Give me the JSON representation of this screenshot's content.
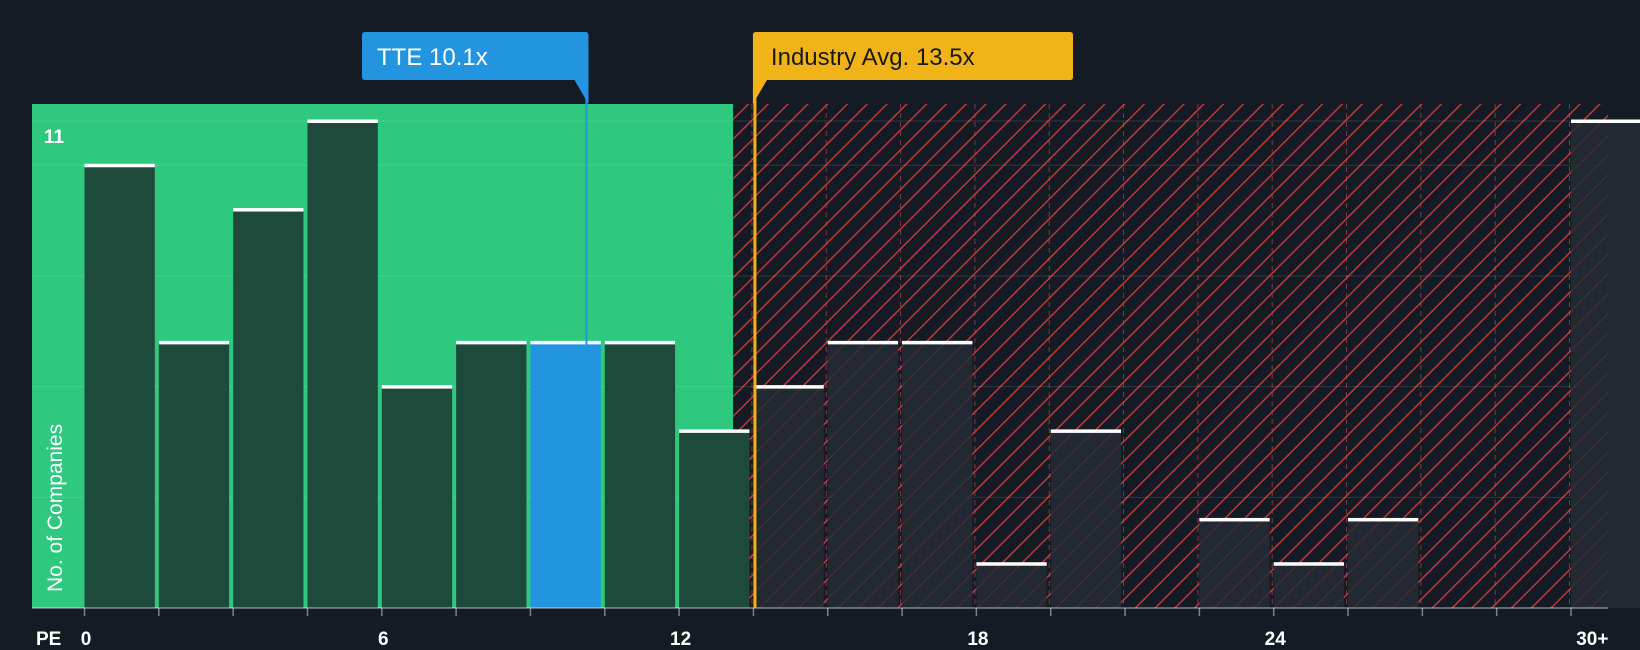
{
  "chart_data": {
    "type": "bar",
    "title": "",
    "xlabel": "PE",
    "ylabel": "No. of Companies",
    "bin_width": 1.5,
    "x_range": [
      -1.1,
      30.8
    ],
    "ylim": [
      0,
      11.4
    ],
    "y_tick_label": "11",
    "y_tick_value": 11,
    "x_ticks": [
      {
        "value": 0,
        "label": "0"
      },
      {
        "value": 6,
        "label": "6"
      },
      {
        "value": 12,
        "label": "12"
      },
      {
        "value": 18,
        "label": "18"
      },
      {
        "value": 24,
        "label": "24"
      },
      {
        "value": 30.4,
        "label": "30+"
      }
    ],
    "bins": [
      {
        "start": 0.0,
        "value": 10
      },
      {
        "start": 1.5,
        "value": 6
      },
      {
        "start": 3.0,
        "value": 9
      },
      {
        "start": 4.5,
        "value": 11
      },
      {
        "start": 6.0,
        "value": 5
      },
      {
        "start": 7.5,
        "value": 6
      },
      {
        "start": 9.0,
        "value": 6,
        "highlight": true
      },
      {
        "start": 10.5,
        "value": 6
      },
      {
        "start": 12.0,
        "value": 4
      },
      {
        "start": 13.5,
        "value": 5
      },
      {
        "start": 15.0,
        "value": 6
      },
      {
        "start": 16.5,
        "value": 6
      },
      {
        "start": 18.0,
        "value": 1
      },
      {
        "start": 19.5,
        "value": 4
      },
      {
        "start": 21.0,
        "value": 0
      },
      {
        "start": 22.5,
        "value": 2
      },
      {
        "start": 24.0,
        "value": 1
      },
      {
        "start": 25.5,
        "value": 2
      },
      {
        "start": 27.0,
        "value": 0
      },
      {
        "start": 28.5,
        "value": 0
      },
      {
        "start": 30.0,
        "value": 11
      }
    ],
    "company": {
      "label": "TTE 10.1x",
      "value": 10.1
    },
    "industry_avg": {
      "label": "Industry Avg. 13.5x",
      "value": 13.5
    },
    "fair_zone_end": 13.0,
    "colors": {
      "background": "#151b24",
      "fair_zone": "#2ec97e",
      "bar_dark": "#1e4a3c",
      "bar_highlight": "#2394e0",
      "expensive_stripe": "#c0373a",
      "industry": "#f0b419",
      "company": "#2394e0",
      "bar_cap": "#ffffff",
      "bar_over_expensive": "#262b36"
    }
  }
}
